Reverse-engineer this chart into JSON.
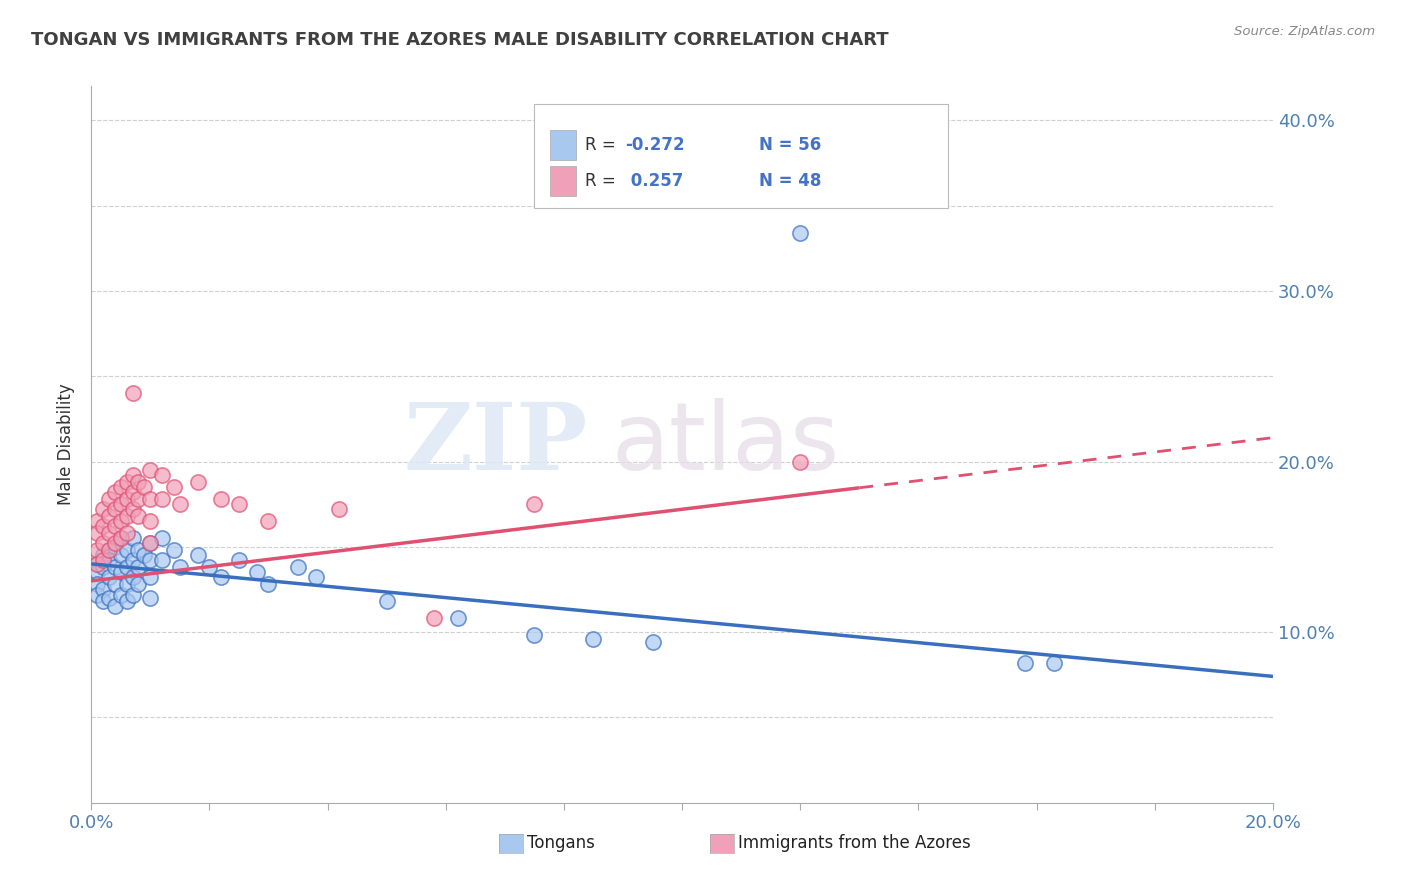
{
  "title": "TONGAN VS IMMIGRANTS FROM THE AZORES MALE DISABILITY CORRELATION CHART",
  "source": "Source: ZipAtlas.com",
  "ylabel_label": "Male Disability",
  "xlim": [
    0.0,
    0.2
  ],
  "ylim": [
    0.0,
    0.42
  ],
  "tongan_R": -0.272,
  "tongan_N": 56,
  "azores_R": 0.257,
  "azores_N": 48,
  "tongan_color": "#a8c8f0",
  "azores_color": "#f0a0b8",
  "tongan_line_color": "#3a6fbf",
  "azores_line_color": "#e05070",
  "watermark_zip": "ZIP",
  "watermark_atlas": "atlas",
  "background_color": "#ffffff",
  "title_color": "#404040",
  "axis_label_color": "#5080b0",
  "grid_color": "#d0d0d0",
  "tongan_intercept": 0.14,
  "tongan_slope": -0.33,
  "azores_intercept": 0.13,
  "azores_slope": 0.42,
  "tongan_points": [
    [
      0.001,
      0.14
    ],
    [
      0.001,
      0.135
    ],
    [
      0.001,
      0.128
    ],
    [
      0.001,
      0.122
    ],
    [
      0.002,
      0.145
    ],
    [
      0.002,
      0.138
    ],
    [
      0.002,
      0.125
    ],
    [
      0.002,
      0.118
    ],
    [
      0.003,
      0.148
    ],
    [
      0.003,
      0.142
    ],
    [
      0.003,
      0.132
    ],
    [
      0.003,
      0.12
    ],
    [
      0.004,
      0.15
    ],
    [
      0.004,
      0.138
    ],
    [
      0.004,
      0.128
    ],
    [
      0.004,
      0.115
    ],
    [
      0.005,
      0.155
    ],
    [
      0.005,
      0.145
    ],
    [
      0.005,
      0.135
    ],
    [
      0.005,
      0.122
    ],
    [
      0.006,
      0.148
    ],
    [
      0.006,
      0.138
    ],
    [
      0.006,
      0.128
    ],
    [
      0.006,
      0.118
    ],
    [
      0.007,
      0.155
    ],
    [
      0.007,
      0.142
    ],
    [
      0.007,
      0.132
    ],
    [
      0.007,
      0.122
    ],
    [
      0.008,
      0.148
    ],
    [
      0.008,
      0.138
    ],
    [
      0.008,
      0.128
    ],
    [
      0.009,
      0.145
    ],
    [
      0.01,
      0.152
    ],
    [
      0.01,
      0.142
    ],
    [
      0.01,
      0.132
    ],
    [
      0.01,
      0.12
    ],
    [
      0.012,
      0.155
    ],
    [
      0.012,
      0.142
    ],
    [
      0.014,
      0.148
    ],
    [
      0.015,
      0.138
    ],
    [
      0.018,
      0.145
    ],
    [
      0.02,
      0.138
    ],
    [
      0.022,
      0.132
    ],
    [
      0.025,
      0.142
    ],
    [
      0.028,
      0.135
    ],
    [
      0.03,
      0.128
    ],
    [
      0.035,
      0.138
    ],
    [
      0.038,
      0.132
    ],
    [
      0.05,
      0.118
    ],
    [
      0.062,
      0.108
    ],
    [
      0.075,
      0.098
    ],
    [
      0.085,
      0.096
    ],
    [
      0.095,
      0.094
    ],
    [
      0.12,
      0.334
    ],
    [
      0.158,
      0.082
    ],
    [
      0.163,
      0.082
    ]
  ],
  "azores_points": [
    [
      0.001,
      0.165
    ],
    [
      0.001,
      0.158
    ],
    [
      0.001,
      0.148
    ],
    [
      0.001,
      0.14
    ],
    [
      0.002,
      0.172
    ],
    [
      0.002,
      0.162
    ],
    [
      0.002,
      0.152
    ],
    [
      0.002,
      0.142
    ],
    [
      0.003,
      0.178
    ],
    [
      0.003,
      0.168
    ],
    [
      0.003,
      0.158
    ],
    [
      0.003,
      0.148
    ],
    [
      0.004,
      0.182
    ],
    [
      0.004,
      0.172
    ],
    [
      0.004,
      0.162
    ],
    [
      0.004,
      0.152
    ],
    [
      0.005,
      0.185
    ],
    [
      0.005,
      0.175
    ],
    [
      0.005,
      0.165
    ],
    [
      0.005,
      0.155
    ],
    [
      0.006,
      0.188
    ],
    [
      0.006,
      0.178
    ],
    [
      0.006,
      0.168
    ],
    [
      0.006,
      0.158
    ],
    [
      0.007,
      0.192
    ],
    [
      0.007,
      0.182
    ],
    [
      0.007,
      0.172
    ],
    [
      0.007,
      0.24
    ],
    [
      0.008,
      0.188
    ],
    [
      0.008,
      0.178
    ],
    [
      0.008,
      0.168
    ],
    [
      0.009,
      0.185
    ],
    [
      0.01,
      0.195
    ],
    [
      0.01,
      0.178
    ],
    [
      0.01,
      0.165
    ],
    [
      0.01,
      0.152
    ],
    [
      0.012,
      0.192
    ],
    [
      0.012,
      0.178
    ],
    [
      0.014,
      0.185
    ],
    [
      0.015,
      0.175
    ],
    [
      0.018,
      0.188
    ],
    [
      0.022,
      0.178
    ],
    [
      0.025,
      0.175
    ],
    [
      0.03,
      0.165
    ],
    [
      0.042,
      0.172
    ],
    [
      0.058,
      0.108
    ],
    [
      0.075,
      0.175
    ],
    [
      0.12,
      0.2
    ]
  ]
}
